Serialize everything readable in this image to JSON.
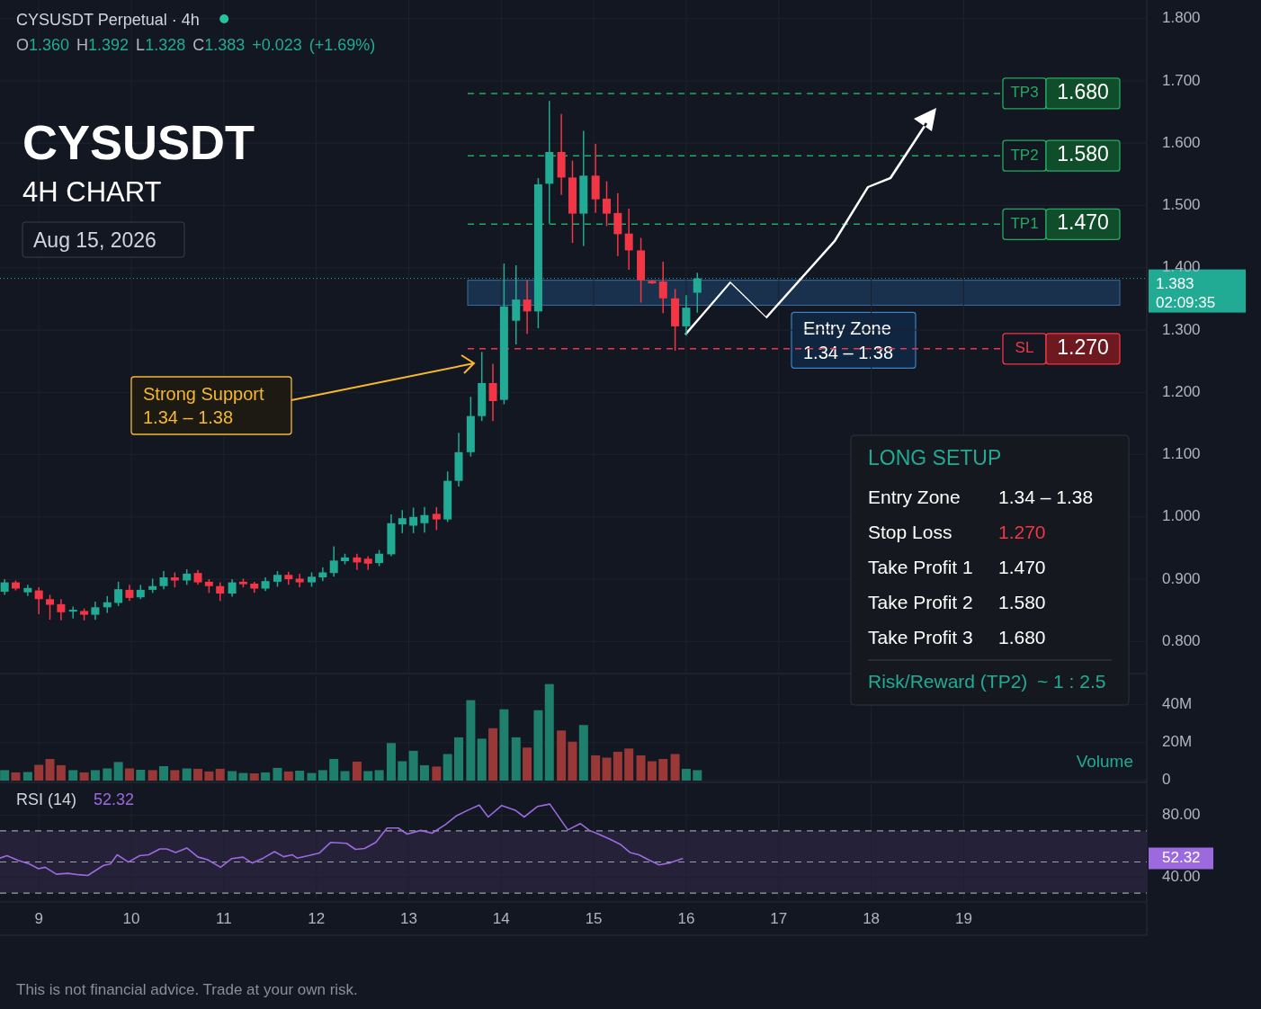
{
  "chart_data": [
    {
      "type": "candlestick",
      "title": "CYSUSDT",
      "subtitle": "4H CHART",
      "annotations": [
        "CYSUSDT Perpetual · 4h",
        "O1.360 H1.392 L1.328 C1.383 +0.023 (+1.69%)",
        "Aug 15, 2026",
        "Strong Support\n1.34 – 1.38",
        "This is not financial advice. Trade at your own risk."
      ],
      "x": [
        8.63,
        8.75,
        8.88,
        9.0,
        9.12,
        9.24,
        9.37,
        9.49,
        9.61,
        9.74,
        9.86,
        9.98,
        10.1,
        10.23,
        10.35,
        10.47,
        10.6,
        10.72,
        10.84,
        10.96,
        11.09,
        11.21,
        11.33,
        11.45,
        11.58,
        11.7,
        11.82,
        11.95,
        12.07,
        12.19,
        12.31,
        12.44,
        12.56,
        12.68,
        12.81,
        12.93,
        13.05,
        13.17,
        13.3,
        13.42,
        13.54,
        13.67,
        13.79,
        13.91,
        14.03,
        14.16,
        14.28,
        14.4,
        14.52,
        14.65,
        14.77,
        14.89,
        15.02,
        15.14,
        15.26,
        15.38,
        15.51,
        15.63,
        15.75,
        15.88,
        16.0,
        16.12
      ],
      "ohlc": [
        [
          0.88,
          0.9,
          0.875,
          0.895
        ],
        [
          0.895,
          0.898,
          0.882,
          0.885
        ],
        [
          0.879,
          0.891,
          0.873,
          0.886
        ],
        [
          0.882,
          0.887,
          0.844,
          0.868
        ],
        [
          0.868,
          0.875,
          0.835,
          0.859
        ],
        [
          0.86,
          0.868,
          0.834,
          0.847
        ],
        [
          0.848,
          0.856,
          0.837,
          0.851
        ],
        [
          0.849,
          0.853,
          0.834,
          0.843
        ],
        [
          0.843,
          0.864,
          0.835,
          0.855
        ],
        [
          0.855,
          0.873,
          0.846,
          0.863
        ],
        [
          0.862,
          0.896,
          0.857,
          0.884
        ],
        [
          0.883,
          0.891,
          0.865,
          0.87
        ],
        [
          0.871,
          0.891,
          0.868,
          0.883
        ],
        [
          0.883,
          0.901,
          0.878,
          0.889
        ],
        [
          0.889,
          0.913,
          0.884,
          0.903
        ],
        [
          0.903,
          0.911,
          0.887,
          0.898
        ],
        [
          0.898,
          0.916,
          0.891,
          0.909
        ],
        [
          0.91,
          0.915,
          0.891,
          0.895
        ],
        [
          0.896,
          0.9,
          0.878,
          0.889
        ],
        [
          0.889,
          0.895,
          0.865,
          0.877
        ],
        [
          0.877,
          0.9,
          0.872,
          0.895
        ],
        [
          0.896,
          0.901,
          0.887,
          0.892
        ],
        [
          0.893,
          0.896,
          0.878,
          0.885
        ],
        [
          0.885,
          0.903,
          0.881,
          0.897
        ],
        [
          0.896,
          0.913,
          0.888,
          0.907
        ],
        [
          0.907,
          0.912,
          0.891,
          0.9
        ],
        [
          0.901,
          0.909,
          0.887,
          0.895
        ],
        [
          0.895,
          0.911,
          0.888,
          0.904
        ],
        [
          0.903,
          0.919,
          0.897,
          0.911
        ],
        [
          0.91,
          0.953,
          0.904,
          0.93
        ],
        [
          0.929,
          0.941,
          0.924,
          0.935
        ],
        [
          0.935,
          0.941,
          0.915,
          0.927
        ],
        [
          0.933,
          0.937,
          0.915,
          0.925
        ],
        [
          0.926,
          0.947,
          0.921,
          0.941
        ],
        [
          0.94,
          1.004,
          0.937,
          0.99
        ],
        [
          0.988,
          1.011,
          0.974,
          0.998
        ],
        [
          0.986,
          1.015,
          0.974,
          1.0
        ],
        [
          0.99,
          1.016,
          0.975,
          1.003
        ],
        [
          1.005,
          1.016,
          0.979,
          0.996
        ],
        [
          0.996,
          1.073,
          0.992,
          1.058
        ],
        [
          1.058,
          1.135,
          1.049,
          1.104
        ],
        [
          1.104,
          1.193,
          1.097,
          1.162
        ],
        [
          1.162,
          1.265,
          1.154,
          1.215
        ],
        [
          1.215,
          1.246,
          1.154,
          1.186
        ],
        [
          1.188,
          1.407,
          1.181,
          1.338
        ],
        [
          1.315,
          1.404,
          1.277,
          1.349
        ],
        [
          1.349,
          1.38,
          1.294,
          1.33
        ],
        [
          1.33,
          1.544,
          1.303,
          1.534
        ],
        [
          1.535,
          1.668,
          1.471,
          1.586
        ],
        [
          1.586,
          1.647,
          1.517,
          1.545
        ],
        [
          1.545,
          1.572,
          1.44,
          1.487
        ],
        [
          1.487,
          1.62,
          1.435,
          1.548
        ],
        [
          1.548,
          1.599,
          1.488,
          1.51
        ],
        [
          1.511,
          1.539,
          1.467,
          1.487
        ],
        [
          1.488,
          1.52,
          1.419,
          1.454
        ],
        [
          1.455,
          1.495,
          1.397,
          1.428
        ],
        [
          1.428,
          1.448,
          1.344,
          1.38
        ],
        [
          1.379,
          1.38,
          1.374,
          1.375
        ],
        [
          1.378,
          1.41,
          1.327,
          1.351
        ],
        [
          1.351,
          1.366,
          1.267,
          1.306
        ],
        [
          1.306,
          1.356,
          1.291,
          1.336
        ],
        [
          1.36,
          1.392,
          1.328,
          1.383
        ]
      ],
      "colors": [
        "#22ab94",
        "#f23645",
        "#22ab94",
        "#f23645",
        "#f23645",
        "#f23645",
        "#22ab94",
        "#f23645",
        "#22ab94",
        "#22ab94",
        "#22ab94",
        "#f23645",
        "#22ab94",
        "#22ab94",
        "#22ab94",
        "#f23645",
        "#22ab94",
        "#f23645",
        "#f23645",
        "#f23645",
        "#22ab94",
        "#f23645",
        "#f23645",
        "#22ab94",
        "#22ab94",
        "#f23645",
        "#f23645",
        "#22ab94",
        "#22ab94",
        "#22ab94",
        "#22ab94",
        "#f23645",
        "#f23645",
        "#22ab94",
        "#22ab94",
        "#22ab94",
        "#22ab94",
        "#22ab94",
        "#f23645",
        "#22ab94",
        "#22ab94",
        "#22ab94",
        "#22ab94",
        "#f23645",
        "#22ab94",
        "#22ab94",
        "#f23645",
        "#22ab94",
        "#22ab94",
        "#f23645",
        "#f23645",
        "#22ab94",
        "#f23645",
        "#f23645",
        "#f23645",
        "#f23645",
        "#f23645",
        "#f23645",
        "#f23645",
        "#f23645",
        "#22ab94",
        "#22ab94"
      ],
      "xlim": [
        8.58,
        20.98
      ],
      "xticks": [
        9,
        10,
        11,
        12,
        13,
        14,
        15,
        16,
        17,
        18,
        19
      ],
      "ylim": [
        0.75,
        1.83
      ],
      "yticks": [
        {
          "value": 0.8,
          "label": "0.800"
        },
        {
          "value": 0.9,
          "label": "0.900"
        },
        {
          "value": 1.0,
          "label": "1.000"
        },
        {
          "value": 1.1,
          "label": "1.100"
        },
        {
          "value": 1.2,
          "label": "1.200"
        },
        {
          "value": 1.3,
          "label": "1.300"
        },
        {
          "value": 1.4,
          "label": "1.400"
        },
        {
          "value": 1.5,
          "label": "1.500"
        },
        {
          "value": 1.6,
          "label": "1.600"
        },
        {
          "value": 1.7,
          "label": "1.700"
        },
        {
          "value": 1.8,
          "label": "1.800"
        }
      ],
      "ref_lines": [
        {
          "axis": "y",
          "value": 1.68,
          "label": "TP3",
          "color": "#22ab5e",
          "line_style": "dashed"
        },
        {
          "axis": "y",
          "value": 1.58,
          "label": "TP2",
          "color": "#22ab5e",
          "line_style": "dashed"
        },
        {
          "axis": "y",
          "value": 1.47,
          "label": "TP1",
          "color": "#22ab5e",
          "line_style": "dashed"
        },
        {
          "axis": "y",
          "value": 1.27,
          "label": "SL",
          "color": "#f23645",
          "line_style": "dashed"
        },
        {
          "axis": "y",
          "value": 1.383,
          "label": "1.383\n02:09:35",
          "color": "#22ab94",
          "line_style": "dotted"
        }
      ],
      "bands": [
        {
          "axis": "y",
          "from": 1.34,
          "to": 1.38,
          "label": "Entry Zone\n1.34 – 1.38",
          "color": "#1c3b5c"
        }
      ],
      "grid": true,
      "tick_labels": "y"
    },
    {
      "type": "bar",
      "annotations": [
        "Volume"
      ],
      "x": [
        8.63,
        8.75,
        8.88,
        9.0,
        9.12,
        9.24,
        9.37,
        9.49,
        9.61,
        9.74,
        9.86,
        9.98,
        10.1,
        10.23,
        10.35,
        10.47,
        10.6,
        10.72,
        10.84,
        10.96,
        11.09,
        11.21,
        11.33,
        11.45,
        11.58,
        11.7,
        11.82,
        11.95,
        12.07,
        12.19,
        12.31,
        12.44,
        12.56,
        12.68,
        12.81,
        12.93,
        13.05,
        13.17,
        13.3,
        13.42,
        13.54,
        13.67,
        13.79,
        13.91,
        14.03,
        14.16,
        14.28,
        14.4,
        14.52,
        14.65,
        14.77,
        14.89,
        15.02,
        15.14,
        15.26,
        15.38,
        15.51,
        15.63,
        15.75,
        15.88,
        16.0,
        16.12
      ],
      "values": [
        5.5,
        4.3,
        4.5,
        8.3,
        11.4,
        8.1,
        5.5,
        4.3,
        5.5,
        6.4,
        9.8,
        6.4,
        5.7,
        5.5,
        7.6,
        5.5,
        6.4,
        6.2,
        4.8,
        6.2,
        5.0,
        4.0,
        3.8,
        4.3,
        6.7,
        4.8,
        5.2,
        4.0,
        5.5,
        11.4,
        5.0,
        10.0,
        5.0,
        5.5,
        19.8,
        10.2,
        15.7,
        8.1,
        7.4,
        14.0,
        22.8,
        42.4,
        22.1,
        27.6,
        37.6,
        22.8,
        17.4,
        37.1,
        50.9,
        26.4,
        20.5,
        29.3,
        13.3,
        12.1,
        15.2,
        16.9,
        13.3,
        10.2,
        11.4,
        14.0,
        6.2,
        5.5
      ],
      "colors": [
        "#1f7f6d",
        "#9a3838",
        "#1f7f6d",
        "#9a3838",
        "#9a3838",
        "#9a3838",
        "#1f7f6d",
        "#9a3838",
        "#1f7f6d",
        "#1f7f6d",
        "#1f7f6d",
        "#9a3838",
        "#1f7f6d",
        "#9a3838",
        "#1f7f6d",
        "#9a3838",
        "#1f7f6d",
        "#9a3838",
        "#9a3838",
        "#9a3838",
        "#1f7f6d",
        "#1f7f6d",
        "#9a3838",
        "#1f7f6d",
        "#1f7f6d",
        "#9a3838",
        "#1f7f6d",
        "#1f7f6d",
        "#1f7f6d",
        "#1f7f6d",
        "#1f7f6d",
        "#9a3838",
        "#1f7f6d",
        "#1f7f6d",
        "#1f7f6d",
        "#1f7f6d",
        "#1f7f6d",
        "#1f7f6d",
        "#9a3838",
        "#1f7f6d",
        "#1f7f6d",
        "#1f7f6d",
        "#1f7f6d",
        "#9a3838",
        "#1f7f6d",
        "#1f7f6d",
        "#9a3838",
        "#1f7f6d",
        "#1f7f6d",
        "#9a3838",
        "#9a3838",
        "#1f7f6d",
        "#9a3838",
        "#9a3838",
        "#9a3838",
        "#9a3838",
        "#9a3838",
        "#9a3838",
        "#9a3838",
        "#9a3838",
        "#1f7f6d",
        "#1f7f6d"
      ],
      "xlim": [
        8.58,
        20.98
      ],
      "xticks": [
        9,
        10,
        11,
        12,
        13,
        14,
        15,
        16,
        17,
        18,
        19
      ],
      "ylim": [
        0,
        55
      ],
      "yticks": [
        {
          "value": 0,
          "label": "0"
        },
        {
          "value": 20,
          "label": "20M"
        },
        {
          "value": 40,
          "label": "40M"
        }
      ],
      "grid": true,
      "tick_labels": "y"
    },
    {
      "type": "line",
      "title": "RSI (14)",
      "annotations": [
        "52.32"
      ],
      "series": [
        {
          "color": "#9c6ade",
          "x": [
            8.58,
            8.655,
            8.777,
            8.898,
            8.995,
            9.068,
            9.19,
            9.312,
            9.433,
            9.53,
            9.628,
            9.701,
            9.774,
            9.847,
            9.968,
            10.09,
            10.187,
            10.309,
            10.382,
            10.479,
            10.6,
            10.722,
            10.82,
            10.965,
            11.087,
            11.208,
            11.306,
            11.427,
            11.549,
            11.646,
            11.743,
            11.792,
            11.914,
            12.035,
            12.157,
            12.327,
            12.424,
            12.522,
            12.643,
            12.765,
            12.886,
            12.984,
            13.13,
            13.251,
            13.397,
            13.519,
            13.64,
            13.762,
            13.859,
            14.005,
            14.151,
            14.248,
            14.394,
            14.525,
            14.72,
            14.856,
            14.953,
            15.051,
            15.172,
            15.294,
            15.391,
            15.489,
            15.586,
            15.708,
            15.829,
            15.965
          ],
          "values": [
            52.5,
            54.0,
            51.0,
            48.7,
            45.7,
            46.6,
            42.1,
            42.7,
            41.8,
            41.3,
            45.1,
            47.8,
            48.7,
            54.6,
            49.9,
            54.0,
            54.6,
            58.4,
            58.4,
            56.1,
            59.0,
            53.1,
            51.6,
            46.6,
            52.2,
            53.1,
            49.3,
            52.5,
            56.6,
            53.4,
            54.6,
            52.5,
            54.0,
            55.8,
            62.6,
            62.0,
            58.1,
            58.7,
            62.6,
            71.8,
            71.8,
            67.9,
            70.3,
            68.5,
            74.1,
            79.8,
            83.3,
            86.6,
            78.9,
            86.3,
            83.3,
            78.9,
            85.7,
            87.2,
            70.6,
            74.7,
            70.3,
            67.9,
            64.7,
            61.1,
            56.1,
            54.6,
            51.6,
            48.1,
            49.5,
            52.3
          ]
        }
      ],
      "xlim": [
        8.58,
        20.98
      ],
      "xticks": [
        9,
        10,
        11,
        12,
        13,
        14,
        15,
        16,
        17,
        18,
        19
      ],
      "ylim": [
        26,
        100
      ],
      "yticks": [
        {
          "value": 80,
          "label": "80.00"
        },
        {
          "value": 40,
          "label": "40.00"
        }
      ],
      "ref_lines": [
        {
          "axis": "y",
          "value": 70,
          "color": "#9aa0aa",
          "line_style": "dashed"
        },
        {
          "axis": "y",
          "value": 50,
          "color": "#9aa0aa",
          "line_style": "dashed"
        },
        {
          "axis": "y",
          "value": 30,
          "color": "#9aa0aa",
          "line_style": "dashed"
        }
      ],
      "bands": [
        {
          "axis": "y",
          "from": 30,
          "to": 70,
          "color": "#2a2440"
        }
      ],
      "grid": true
    },
    {
      "type": "other",
      "title": "LONG SETUP",
      "annotations": [
        "Entry Zone",
        "1.34 – 1.38",
        "Stop Loss",
        "1.270",
        "Take Profit 1",
        "1.470",
        "Take Profit 2",
        "1.580",
        "Take Profit 3",
        "1.680",
        "Risk/Reward (TP2)",
        "~ 1 : 2.5"
      ]
    }
  ]
}
